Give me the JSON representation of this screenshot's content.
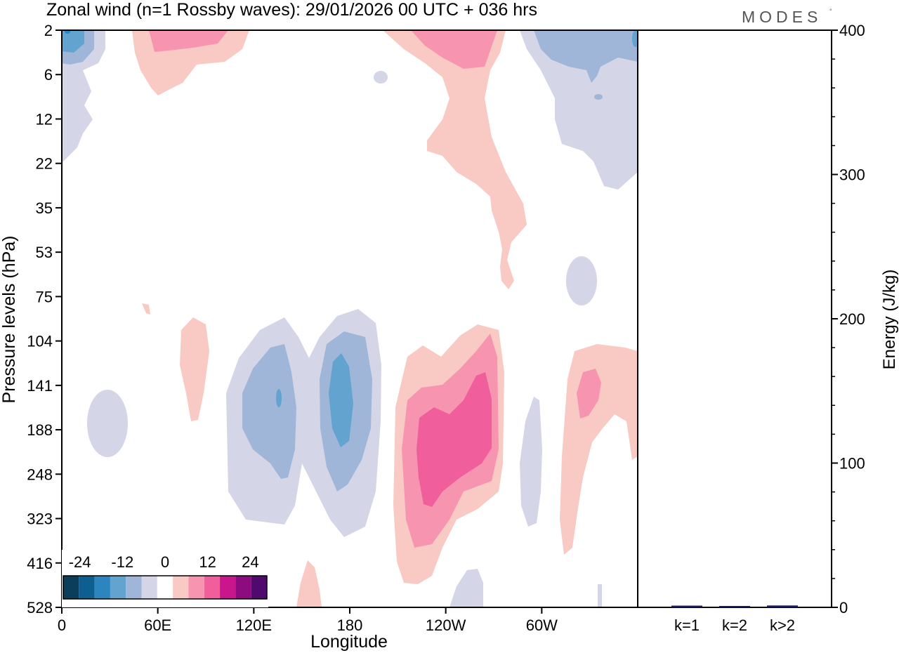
{
  "chart_data": [
    {
      "type": "heatmap",
      "subtype": "filled-contour",
      "title": "Zonal wind (n=1 Rossby waves):  29/01/2026  00 UTC  + 036 hrs",
      "brand": "MODES",
      "brand_mark": "°",
      "xlabel": "Longitude",
      "ylabel": "Pressure levels (hPa)",
      "x_ticks": [
        "0",
        "60E",
        "120E",
        "180",
        "120W",
        "60W"
      ],
      "x_tick_lon": [
        0,
        60,
        120,
        180,
        240,
        300
      ],
      "x_range": [
        0,
        360
      ],
      "y_ticks": [
        "2",
        "6",
        "12",
        "22",
        "35",
        "53",
        "75",
        "104",
        "141",
        "188",
        "248",
        "323",
        "416",
        "528"
      ],
      "colorbar": {
        "tick_labels": [
          "-24",
          "-12",
          "0",
          "12",
          "24"
        ],
        "colors": [
          "#0a3e5a",
          "#0e5f91",
          "#2c85bf",
          "#62a3cf",
          "#9fb6d8",
          "#d4d6e7",
          "#ffffff",
          "#f9c9c4",
          "#f795b0",
          "#f05e9c",
          "#c9168c",
          "#8c0b7e",
          "#500a6e"
        ]
      },
      "contours": [
        {
          "level": -4,
          "lon": 15,
          "level_index": 9.2,
          "span_lon": 22,
          "span_levels": 1.8
        },
        {
          "level": -4,
          "lon": 140,
          "level_index": 9.5,
          "span_lon": 60,
          "span_levels": 4.4
        },
        {
          "level": -8,
          "lon": 140,
          "level_index": 9.3,
          "span_lon": 32,
          "span_levels": 2.6
        },
        {
          "level": -4,
          "lon": 175,
          "level_index": 9.4,
          "span_lon": 45,
          "span_levels": 4.5
        },
        {
          "level": -8,
          "lon": 175,
          "level_index": 9.4,
          "span_lon": 30,
          "span_levels": 3.5
        },
        {
          "level": -12,
          "lon": 175,
          "level_index": 9.2,
          "span_lon": 14,
          "span_levels": 2.3
        },
        {
          "level": 4,
          "lon": 240,
          "level_index": 9.7,
          "span_lon": 60,
          "span_levels": 5.1
        },
        {
          "level": 8,
          "lon": 238,
          "level_index": 9.8,
          "span_lon": 48,
          "span_levels": 3.8
        },
        {
          "level": 12,
          "lon": 238,
          "level_index": 9.7,
          "span_lon": 36,
          "span_levels": 2.5
        },
        {
          "level": 4,
          "lon": 320,
          "level_index": 10.0,
          "span_lon": 38,
          "span_levels": 4.6
        },
        {
          "level": 8,
          "lon": 330,
          "level_index": 8.8,
          "span_lon": 12,
          "span_levels": 1.1
        },
        {
          "level": -4,
          "lon": 300,
          "level_index": 2.5,
          "span_lon": 45,
          "span_levels": 4.0
        },
        {
          "level": 4,
          "lon": 228,
          "level_index": 3.0,
          "span_lon": 50,
          "span_levels": 5.5
        },
        {
          "level": 8,
          "lon": 225,
          "level_index": 0.4,
          "span_lon": 40,
          "span_levels": 1.0
        },
        {
          "level": 4,
          "lon": 75,
          "level_index": 0.8,
          "span_lon": 40,
          "span_levels": 1.8
        },
        {
          "level": 8,
          "lon": 75,
          "level_index": 0.2,
          "span_lon": 30,
          "span_levels": 0.6
        }
      ]
    },
    {
      "type": "bar",
      "ylabel": "Energy (J/kg)",
      "categories": [
        "k=1",
        "k=2",
        "k>2"
      ],
      "values": [
        1.2,
        0.4,
        1.3
      ],
      "ylim": [
        0,
        400
      ],
      "y_ticks": [
        "0",
        "100",
        "200",
        "300",
        "400"
      ],
      "y_tick_values": [
        0,
        100,
        200,
        300,
        400
      ],
      "bar_color": "#1a1a5e"
    }
  ]
}
